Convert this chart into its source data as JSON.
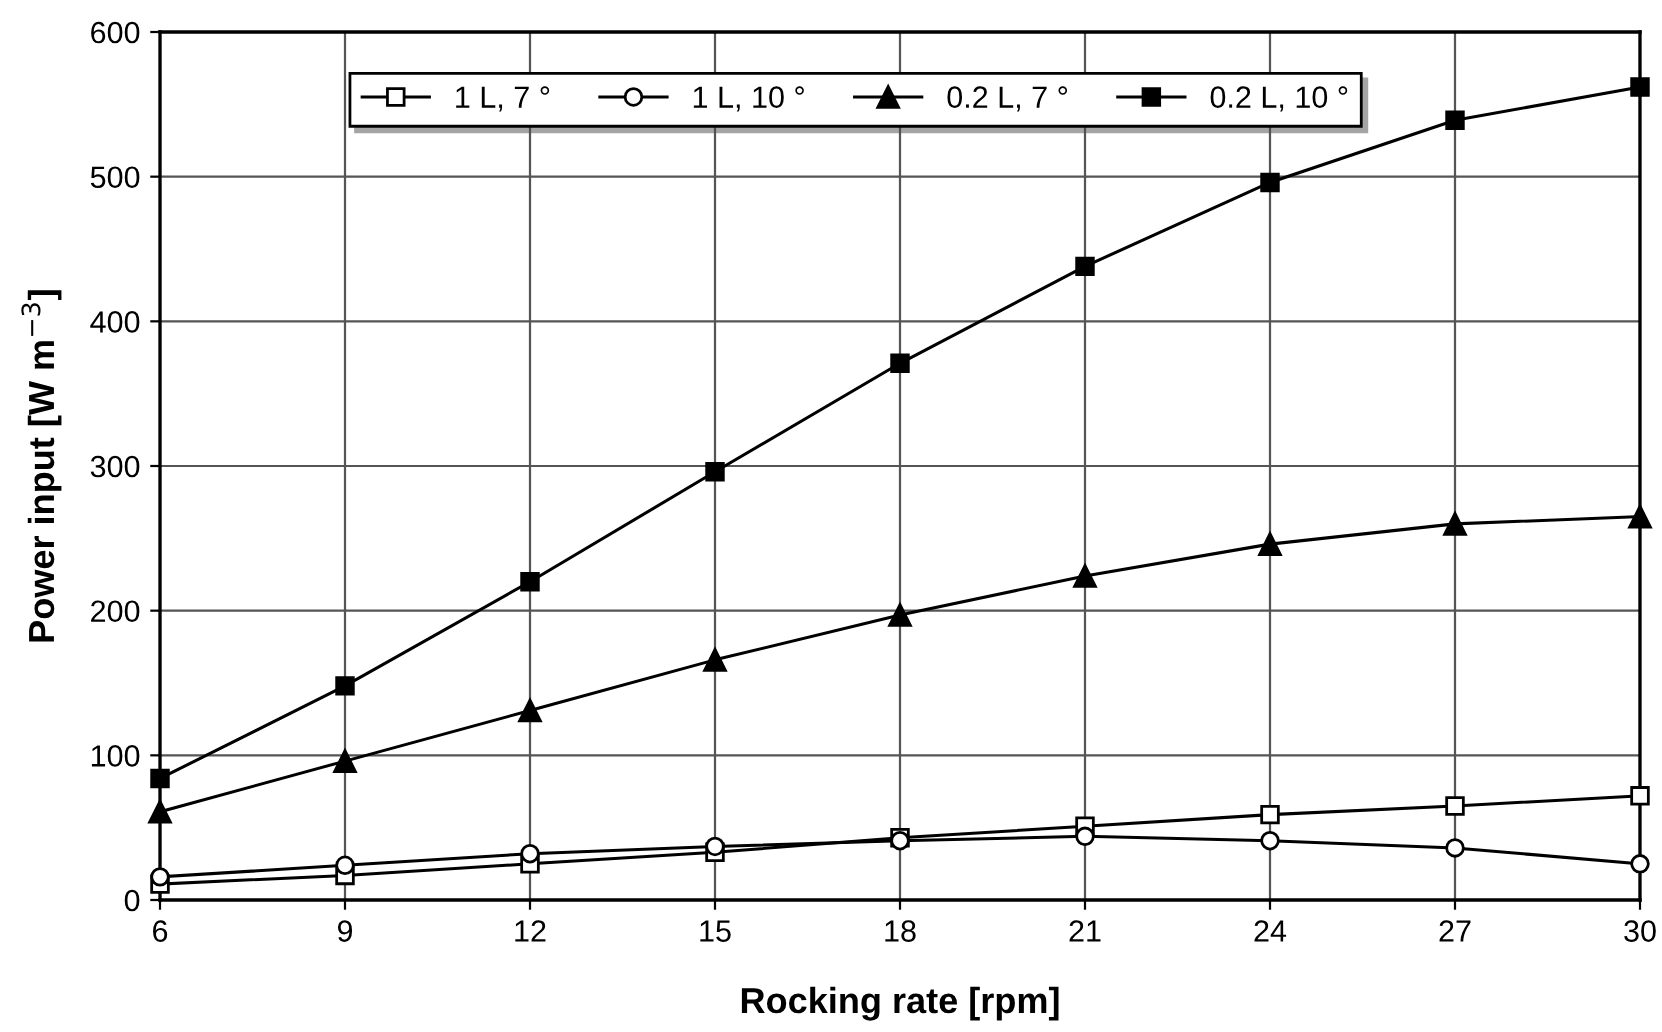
{
  "chart_data": {
    "type": "line",
    "xlabel": "Rocking rate [rpm]",
    "ylabel": "Power input [W m$^{−3}$]",
    "x": [
      6,
      9,
      12,
      15,
      18,
      21,
      24,
      27,
      30
    ],
    "xlim": [
      6,
      30
    ],
    "xticks": [
      6,
      9,
      12,
      15,
      18,
      21,
      24,
      27,
      30
    ],
    "ylim": [
      0,
      600
    ],
    "yticks": [
      0,
      100,
      200,
      300,
      400,
      500,
      600
    ],
    "grid": true,
    "legend": "top",
    "line_style": "solid",
    "series": [
      {
        "name": "1 L, 7 °",
        "color": "#000000",
        "marker": "square",
        "values": [
          11,
          17,
          25,
          33,
          43,
          51,
          59,
          65,
          72
        ]
      },
      {
        "name": "1 L, 10 °",
        "color": "#000000",
        "marker": "circle",
        "values": [
          16,
          24,
          32,
          37,
          41,
          44,
          41,
          36,
          25
        ]
      },
      {
        "name": "0.2 L, 7 °",
        "color": "#000000",
        "marker": "triangle",
        "values": [
          61,
          96,
          131,
          166,
          197,
          224,
          246,
          260,
          265
        ]
      },
      {
        "name": "0.2 L, 10 °",
        "color": "#000000",
        "marker": "square",
        "values": [
          84,
          148,
          220,
          296,
          371,
          438,
          496,
          539,
          562
        ]
      }
    ]
  }
}
